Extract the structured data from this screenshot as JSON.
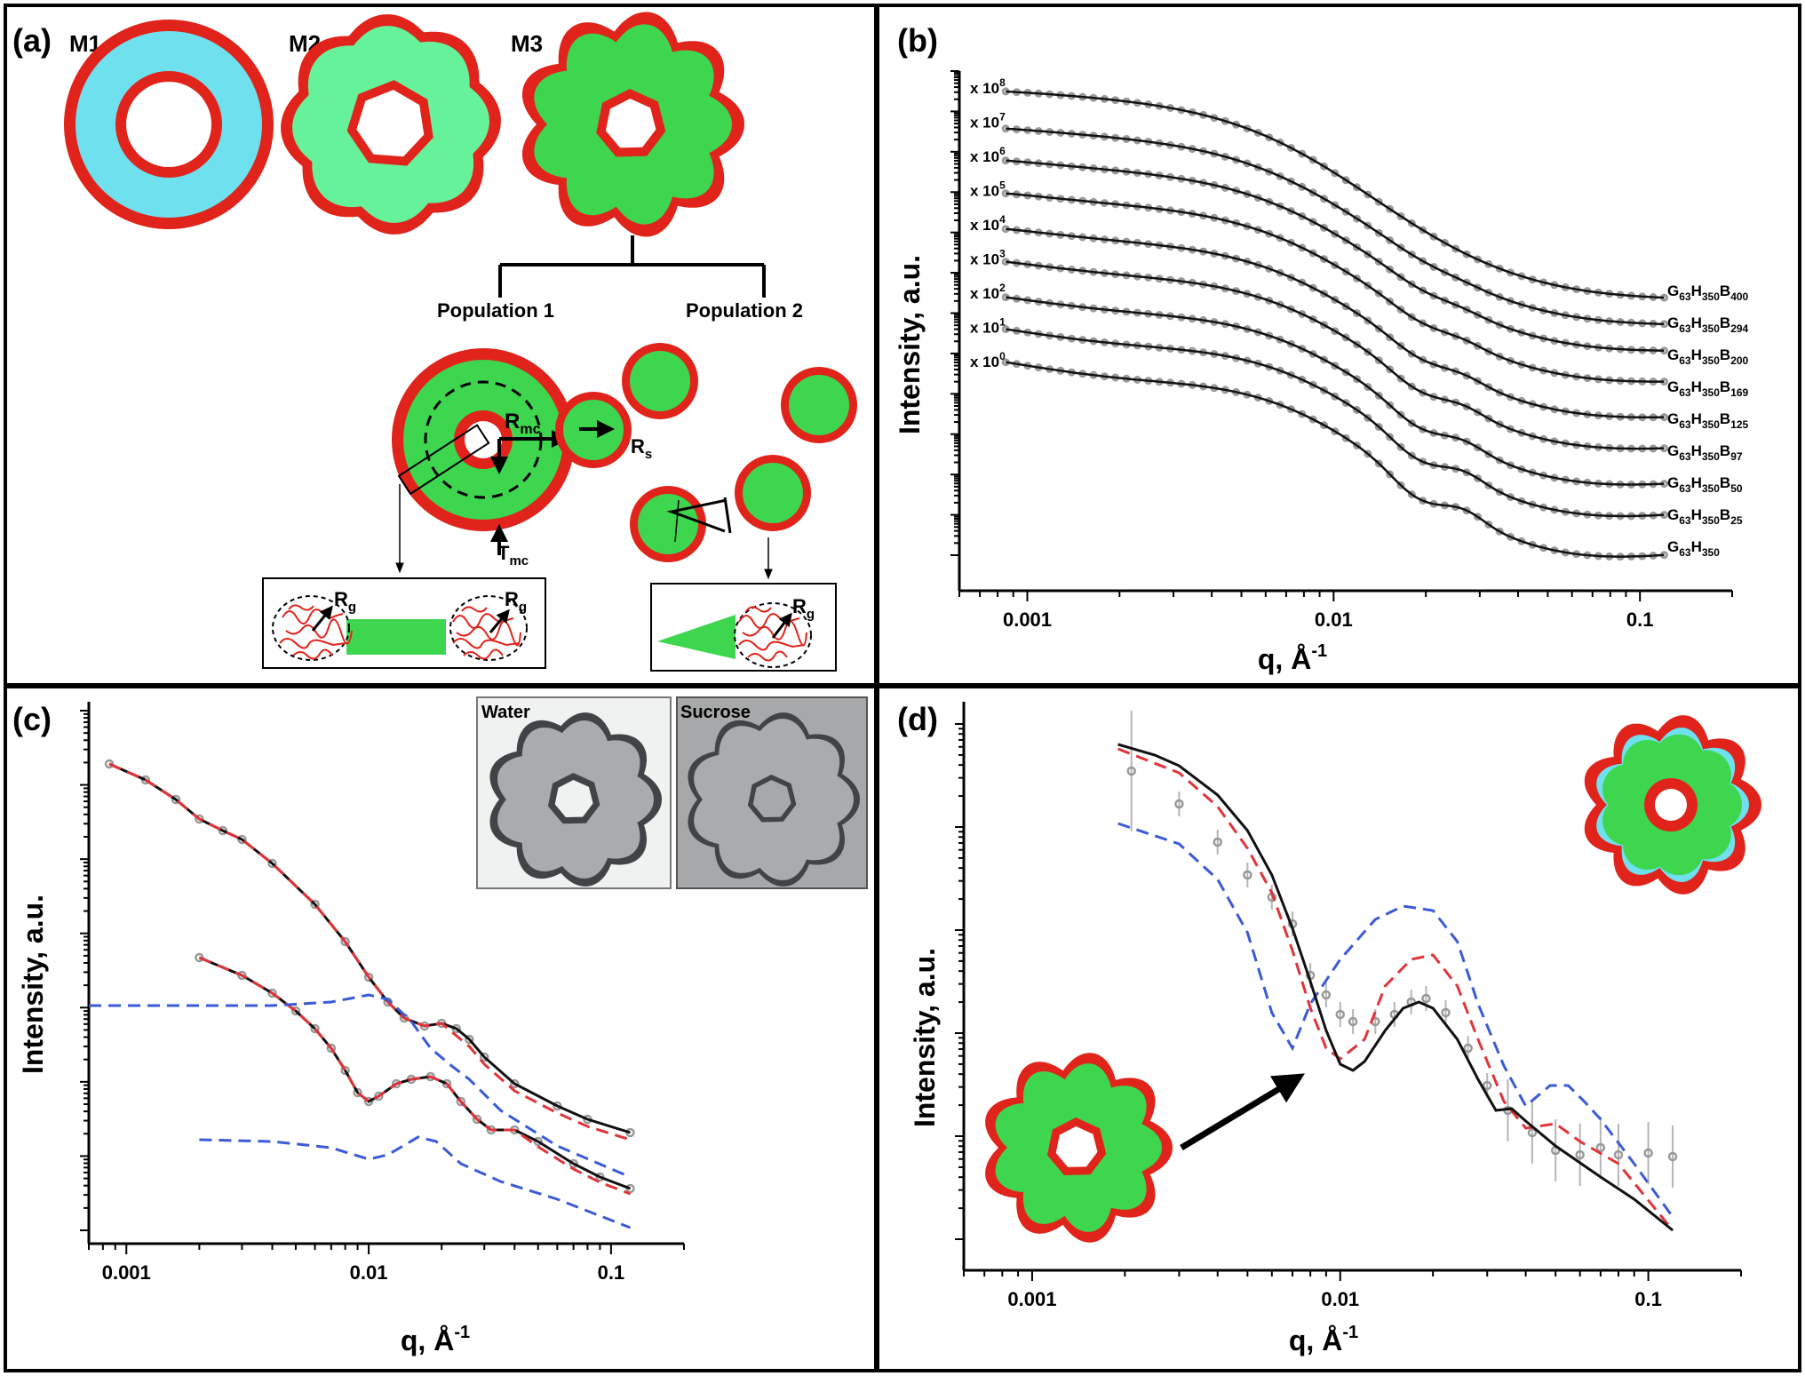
{
  "panels": {
    "a": {
      "label": "(a)",
      "models": [
        "M1",
        "M2",
        "M3"
      ],
      "pop1": "Population 1",
      "pop2": "Population 2",
      "r_mc": "R",
      "r_mc_sub": "mc",
      "t_mc": "T",
      "t_mc_sub": "mc",
      "r_s": "R",
      "r_s_sub": "s",
      "r_g": "R",
      "r_g_sub": "g"
    },
    "b": {
      "label": "(b)",
      "ylabel": "Intensity, a.u.",
      "xlabel_main": "q, Å",
      "xlabel_sup": "-1",
      "xticks": [
        "0.001",
        "0.01",
        "0.1"
      ],
      "offsets": [
        {
          "base": "x 10",
          "exp": "8"
        },
        {
          "base": "x 10",
          "exp": "7"
        },
        {
          "base": "x 10",
          "exp": "6"
        },
        {
          "base": "x 10",
          "exp": "5"
        },
        {
          "base": "x 10",
          "exp": "4"
        },
        {
          "base": "x 10",
          "exp": "3"
        },
        {
          "base": "x 10",
          "exp": "2"
        },
        {
          "base": "x 10",
          "exp": "1"
        },
        {
          "base": "x 10",
          "exp": "0"
        }
      ],
      "series_labels": [
        {
          "g": "63",
          "h": "350",
          "b": "400"
        },
        {
          "g": "63",
          "h": "350",
          "b": "294"
        },
        {
          "g": "63",
          "h": "350",
          "b": "200"
        },
        {
          "g": "63",
          "h": "350",
          "b": "169"
        },
        {
          "g": "63",
          "h": "350",
          "b": "125"
        },
        {
          "g": "63",
          "h": "350",
          "b": "97"
        },
        {
          "g": "63",
          "h": "350",
          "b": "50"
        },
        {
          "g": "63",
          "h": "350",
          "b": "25"
        },
        {
          "g": "63",
          "h": "350",
          "b": ""
        }
      ]
    },
    "c": {
      "label": "(c)",
      "ylabel": "Intensity, a.u.",
      "xlabel_main": "q, Å",
      "xlabel_sup": "-1",
      "xticks": [
        "0.001",
        "0.01",
        "0.1"
      ],
      "inset_water": "Water",
      "inset_sucrose": "Sucrose"
    },
    "d": {
      "label": "(d)",
      "ylabel": "Intensity, a.u.",
      "xlabel_main": "q, Å",
      "xlabel_sup": "-1",
      "xticks": [
        "0.001",
        "0.01",
        "0.1"
      ]
    }
  },
  "colors": {
    "shell_red": "#e0231b",
    "m1_core": "#6ee0ee",
    "m2_core": "#66f29a",
    "m3_core": "#3dd64e",
    "inset_bg_water": "#f0f1f1",
    "inset_bg_sucrose": "#a6a8a9",
    "inset_fill": "#a9abac",
    "inset_shell": "#404447",
    "data_grey": "#8f8f8f",
    "fit_black": "#111111",
    "fit_red_dash": "#e0343a",
    "fit_blue_dash": "#3a5ad8"
  },
  "chart_data": [
    {
      "type": "line",
      "panel": "b",
      "x_axis": {
        "label": "q, Å-1",
        "scale": "log",
        "range": [
          0.0006,
          0.2
        ],
        "ticks": [
          0.001,
          0.01,
          0.1
        ]
      },
      "y_axis": {
        "label": "Intensity, a.u.",
        "scale": "log"
      },
      "series": [
        {
          "name": "G63H350B400",
          "offset": "x 10^8"
        },
        {
          "name": "G63H350B294",
          "offset": "x 10^7"
        },
        {
          "name": "G63H350B200",
          "offset": "x 10^6"
        },
        {
          "name": "G63H350B169",
          "offset": "x 10^5"
        },
        {
          "name": "G63H350B125",
          "offset": "x 10^4"
        },
        {
          "name": "G63H350B97",
          "offset": "x 10^3"
        },
        {
          "name": "G63H350B50",
          "offset": "x 10^2"
        },
        {
          "name": "G63H350B25",
          "offset": "x 10^1"
        },
        {
          "name": "G63H350",
          "offset": "x 10^0"
        }
      ]
    },
    {
      "type": "line",
      "panel": "c",
      "x_axis": {
        "label": "q, Å-1",
        "scale": "log",
        "range": [
          0.0007,
          0.2
        ],
        "ticks": [
          0.001,
          0.01,
          0.1
        ]
      },
      "y_axis": {
        "label": "Intensity, a.u.",
        "scale": "log"
      }
    },
    {
      "type": "line",
      "panel": "d",
      "x_axis": {
        "label": "q, Å-1",
        "scale": "log",
        "range": [
          0.0006,
          0.2
        ],
        "ticks": [
          0.001,
          0.01,
          0.1
        ]
      },
      "y_axis": {
        "label": "Intensity, a.u.",
        "scale": "log"
      }
    }
  ]
}
